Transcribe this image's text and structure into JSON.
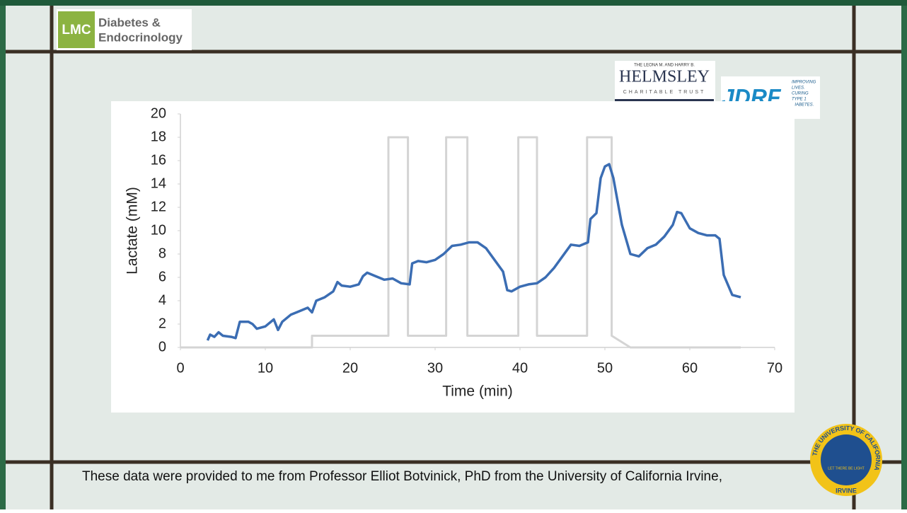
{
  "slide": {
    "lmc_logo": {
      "mark": "LMC",
      "line1": "Diabetes &",
      "line2": "Endocrinology"
    },
    "helmsley_logo": {
      "top": "THE LEONA M. AND HARRY B.",
      "name": "HELMSLEY",
      "bottom": "CHARITABLE TRUST"
    },
    "jdrf_logo": {
      "name": "JDRF",
      "line1": "IMPROVING",
      "line2": "LIVES.",
      "line3": "CURING",
      "line4": "TYPE 1",
      "line5": "DIABETES."
    },
    "uci_seal": {
      "ring": "THE UNIVERSITY OF CALIFORNIA",
      "bottom": "IRVINE",
      "motto": "LET THERE BE LIGHT"
    },
    "caption": "These data were provided to me from Professor Elliot Botvinick, PhD from the University of California Irvine,"
  },
  "chart_data": {
    "type": "line",
    "xlabel": "Time (min)",
    "ylabel": "Lactate (mM)",
    "xlim": [
      0,
      70
    ],
    "xticks": [
      0,
      10,
      20,
      30,
      40,
      50,
      60,
      70
    ],
    "ylim": [
      0,
      20
    ],
    "yticks": [
      0,
      2,
      4,
      6,
      8,
      10,
      12,
      14,
      16,
      18,
      20
    ],
    "series": [
      {
        "color": "#d4d4d4",
        "x": [
          0,
          15.5,
          15.5,
          24.5,
          24.5,
          26.8,
          26.8,
          31.3,
          31.3,
          33.8,
          33.8,
          39.8,
          39.8,
          42,
          42,
          47.9,
          47.9,
          50.8,
          50.8,
          53,
          66
        ],
        "values": [
          0,
          0,
          1,
          1,
          18,
          18,
          1,
          1,
          18,
          18,
          1,
          1,
          18,
          18,
          1,
          1,
          18,
          18,
          1,
          0,
          0
        ]
      },
      {
        "color": "#3b6db3",
        "x": [
          3.2,
          3.5,
          4,
          4.5,
          5,
          6,
          6.5,
          7,
          8,
          8.5,
          9,
          10,
          11,
          11.5,
          12,
          13,
          14,
          15,
          15.5,
          16,
          17,
          18,
          18.5,
          19,
          20,
          21,
          21.5,
          22,
          23,
          24,
          25,
          26,
          27,
          27.3,
          28,
          29,
          30,
          31,
          32,
          33,
          34,
          35,
          36,
          37,
          38,
          38.5,
          39,
          40,
          41,
          42,
          43,
          44,
          45,
          46,
          47,
          48,
          48.3,
          49,
          49.5,
          50,
          50.5,
          51,
          52,
          53,
          54,
          55,
          56,
          57,
          58,
          58.5,
          59,
          60,
          61,
          62,
          63,
          63.5,
          64,
          65,
          65.5,
          66
        ],
        "values": [
          0.6,
          1.1,
          0.9,
          1.3,
          1.0,
          0.9,
          0.8,
          2.2,
          2.2,
          2.0,
          1.6,
          1.8,
          2.4,
          1.5,
          2.2,
          2.8,
          3.1,
          3.4,
          3.0,
          4.0,
          4.3,
          4.8,
          5.6,
          5.3,
          5.2,
          5.4,
          6.1,
          6.4,
          6.1,
          5.8,
          5.9,
          5.5,
          5.4,
          7.2,
          7.4,
          7.3,
          7.5,
          8.0,
          8.7,
          8.8,
          9.0,
          9.0,
          8.5,
          7.5,
          6.5,
          4.9,
          4.8,
          5.2,
          5.4,
          5.5,
          6.0,
          6.8,
          7.8,
          8.8,
          8.7,
          9.0,
          11.0,
          11.5,
          14.5,
          15.5,
          15.7,
          14.5,
          10.5,
          8.0,
          7.8,
          8.5,
          8.8,
          9.5,
          10.5,
          11.6,
          11.5,
          10.2,
          9.8,
          9.6,
          9.6,
          9.3,
          6.2,
          4.5,
          4.4,
          4.3
        ]
      }
    ]
  }
}
